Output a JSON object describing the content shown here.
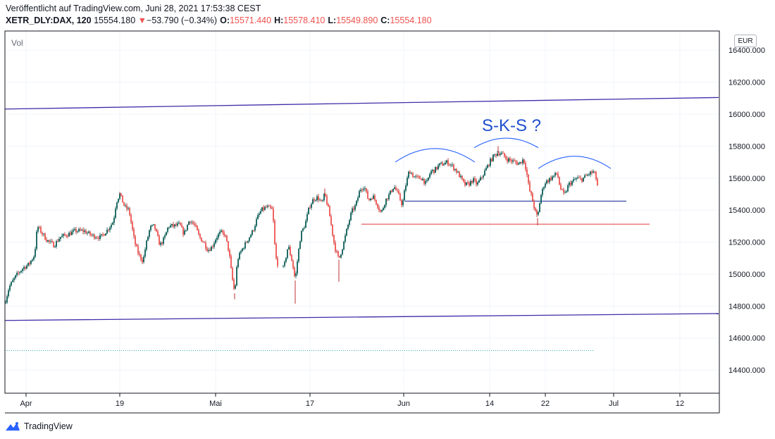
{
  "header": {
    "published": "Veröffentlicht auf TradingView.com, Juni 28, 2021 17:53:38 CEST",
    "symbol": "XETR_DLY:DAX, 120",
    "last": "15554.180",
    "change_arrow": "▼",
    "change": "−53.790 (−0.34%)",
    "o_label": "O:",
    "o_value": "15571.440",
    "h_label": "H:",
    "h_value": "15578.410",
    "l_label": "L:",
    "l_value": "15549.890",
    "c_label": "C:",
    "c_value": "15554.180"
  },
  "vol_label": "Vol",
  "currency": "EUR",
  "footer": {
    "logo_text": "TradingView"
  },
  "annotation_text": "S-K-S ?",
  "colors": {
    "up": "#26a69a",
    "down": "#ef5350",
    "up_dark": "#0b5d55",
    "down_dark": "#b71c1c",
    "channel": "#3f2ca8",
    "neckline": "#2a3a9e",
    "support": "#e53935",
    "arc": "#2962ff",
    "annotation": "#1e4fcf",
    "grid": "#f0f3fa",
    "axis": "#131722"
  },
  "chart_data": {
    "type": "candlestick",
    "y_ticks": [
      {
        "v": 16400,
        "label": "16400.000"
      },
      {
        "v": 16200,
        "label": "16200.000"
      },
      {
        "v": 16000,
        "label": "16000.000"
      },
      {
        "v": 15800,
        "label": "15800.000"
      },
      {
        "v": 15600,
        "label": "15600.000"
      },
      {
        "v": 15400,
        "label": "15400.000"
      },
      {
        "v": 15200,
        "label": "15200.000"
      },
      {
        "v": 15000,
        "label": "15000.000"
      },
      {
        "v": 14800,
        "label": "14800.000"
      },
      {
        "v": 14600,
        "label": "14600.000"
      },
      {
        "v": 14400,
        "label": "14400.000"
      }
    ],
    "ylim": [
      14255,
      16520
    ],
    "xlim": [
      0,
      1013
    ],
    "x_ticks": [
      {
        "x": 30,
        "label": "Apr"
      },
      {
        "x": 163,
        "label": "19"
      },
      {
        "x": 299,
        "label": "Mai"
      },
      {
        "x": 433,
        "label": "17"
      },
      {
        "x": 566,
        "label": "Jun"
      },
      {
        "x": 688,
        "label": "14"
      },
      {
        "x": 767,
        "label": "22"
      },
      {
        "x": 864,
        "label": "Jul"
      },
      {
        "x": 958,
        "label": "12"
      }
    ],
    "path_anchors": [
      [
        0,
        14820
      ],
      [
        6,
        14920
      ],
      [
        16,
        14990
      ],
      [
        26,
        15040
      ],
      [
        34,
        15060
      ],
      [
        42,
        15120
      ],
      [
        46,
        15300
      ],
      [
        52,
        15260
      ],
      [
        60,
        15210
      ],
      [
        70,
        15180
      ],
      [
        78,
        15230
      ],
      [
        90,
        15250
      ],
      [
        100,
        15270
      ],
      [
        112,
        15270
      ],
      [
        124,
        15240
      ],
      [
        136,
        15230
      ],
      [
        146,
        15280
      ],
      [
        154,
        15330
      ],
      [
        158,
        15450
      ],
      [
        163,
        15500
      ],
      [
        170,
        15420
      ],
      [
        176,
        15400
      ],
      [
        180,
        15300
      ],
      [
        184,
        15200
      ],
      [
        190,
        15120
      ],
      [
        196,
        15080
      ],
      [
        200,
        15180
      ],
      [
        206,
        15290
      ],
      [
        212,
        15300
      ],
      [
        220,
        15180
      ],
      [
        226,
        15220
      ],
      [
        232,
        15300
      ],
      [
        240,
        15300
      ],
      [
        248,
        15310
      ],
      [
        254,
        15250
      ],
      [
        262,
        15340
      ],
      [
        270,
        15300
      ],
      [
        276,
        15230
      ],
      [
        282,
        15200
      ],
      [
        288,
        15150
      ],
      [
        294,
        15170
      ],
      [
        300,
        15230
      ],
      [
        306,
        15260
      ],
      [
        312,
        15250
      ],
      [
        318,
        15140
      ],
      [
        322,
        14990
      ],
      [
        326,
        14880
      ],
      [
        330,
        15090
      ],
      [
        336,
        15150
      ],
      [
        344,
        15210
      ],
      [
        352,
        15270
      ],
      [
        358,
        15350
      ],
      [
        364,
        15400
      ],
      [
        372,
        15420
      ],
      [
        380,
        15400
      ],
      [
        384,
        15110
      ],
      [
        390,
        15020
      ],
      [
        396,
        15040
      ],
      [
        402,
        15180
      ],
      [
        408,
        15070
      ],
      [
        412,
        14960
      ],
      [
        416,
        15120
      ],
      [
        420,
        15250
      ],
      [
        426,
        15310
      ],
      [
        432,
        15420
      ],
      [
        438,
        15470
      ],
      [
        444,
        15480
      ],
      [
        450,
        15440
      ],
      [
        454,
        15500
      ],
      [
        460,
        15390
      ],
      [
        464,
        15280
      ],
      [
        468,
        15170
      ],
      [
        474,
        15090
      ],
      [
        480,
        15180
      ],
      [
        486,
        15290
      ],
      [
        492,
        15390
      ],
      [
        498,
        15430
      ],
      [
        504,
        15530
      ],
      [
        510,
        15550
      ],
      [
        516,
        15460
      ],
      [
        522,
        15490
      ],
      [
        528,
        15440
      ],
      [
        534,
        15380
      ],
      [
        540,
        15460
      ],
      [
        546,
        15500
      ],
      [
        552,
        15550
      ],
      [
        558,
        15500
      ],
      [
        564,
        15430
      ],
      [
        568,
        15540
      ],
      [
        574,
        15650
      ],
      [
        580,
        15610
      ],
      [
        586,
        15600
      ],
      [
        592,
        15600
      ],
      [
        598,
        15560
      ],
      [
        604,
        15640
      ],
      [
        610,
        15650
      ],
      [
        616,
        15680
      ],
      [
        622,
        15690
      ],
      [
        628,
        15700
      ],
      [
        634,
        15680
      ],
      [
        640,
        15650
      ],
      [
        646,
        15610
      ],
      [
        652,
        15560
      ],
      [
        658,
        15560
      ],
      [
        664,
        15590
      ],
      [
        670,
        15560
      ],
      [
        676,
        15600
      ],
      [
        682,
        15650
      ],
      [
        688,
        15700
      ],
      [
        694,
        15740
      ],
      [
        700,
        15760
      ],
      [
        706,
        15750
      ],
      [
        712,
        15720
      ],
      [
        718,
        15710
      ],
      [
        724,
        15700
      ],
      [
        730,
        15690
      ],
      [
        736,
        15720
      ],
      [
        740,
        15650
      ],
      [
        744,
        15530
      ],
      [
        748,
        15480
      ],
      [
        752,
        15400
      ],
      [
        756,
        15350
      ],
      [
        760,
        15480
      ],
      [
        766,
        15570
      ],
      [
        772,
        15590
      ],
      [
        778,
        15610
      ],
      [
        784,
        15630
      ],
      [
        788,
        15540
      ],
      [
        794,
        15490
      ],
      [
        800,
        15560
      ],
      [
        806,
        15580
      ],
      [
        812,
        15600
      ],
      [
        818,
        15590
      ],
      [
        824,
        15610
      ],
      [
        830,
        15630
      ],
      [
        836,
        15640
      ],
      [
        842,
        15554
      ]
    ],
    "lines": [
      {
        "name": "upper-channel",
        "x1": 0,
        "y1": 16032,
        "x2": 1013,
        "y2": 16104
      },
      {
        "name": "lower-channel",
        "x1": 0,
        "y1": 14710,
        "x2": 1013,
        "y2": 14753
      },
      {
        "name": "neckline",
        "x1": 567,
        "y1": 15456,
        "x2": 882,
        "y2": 15456
      },
      {
        "name": "support",
        "x1": 506,
        "y1": 15312,
        "x2": 915,
        "y2": 15312
      },
      {
        "name": "prior-close",
        "x1": 0,
        "y1": 14522,
        "x2": 836,
        "y2": 14522
      }
    ],
    "arcs": [
      {
        "name": "left-shoulder-arc",
        "x1": 554,
        "x2": 667,
        "base": 15700,
        "peak": 15785
      },
      {
        "name": "head-arc",
        "x1": 666,
        "x2": 757,
        "base": 15790,
        "peak": 15850
      },
      {
        "name": "right-shoulder-arc",
        "x1": 757,
        "x2": 860,
        "base": 15660,
        "peak": 15737
      }
    ]
  }
}
